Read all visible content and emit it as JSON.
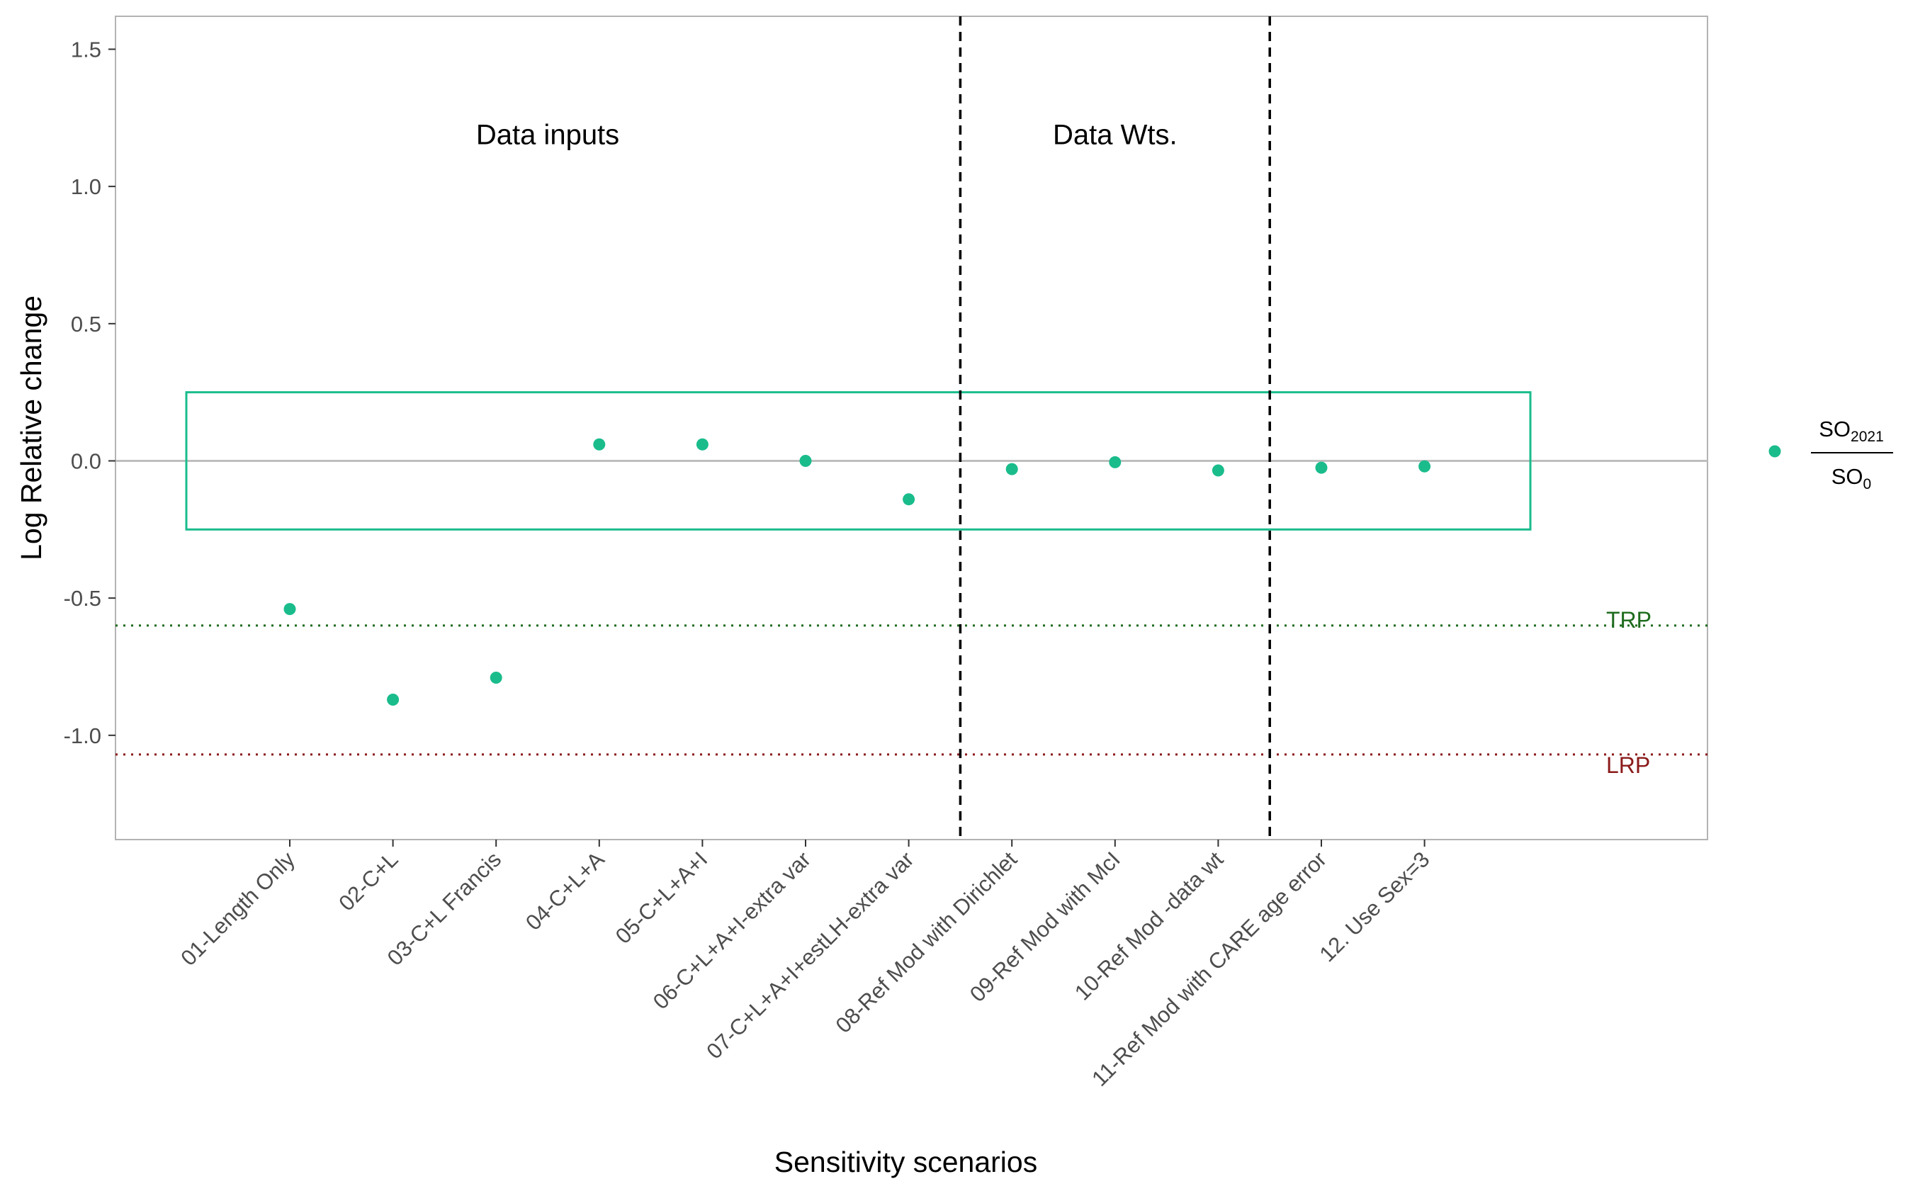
{
  "chart_data": {
    "type": "scatter",
    "xlabel": "Sensitivity scenarios",
    "ylabel": "Log Relative change",
    "ylim": [
      -1.38,
      1.62
    ],
    "yticks": [
      1.5,
      1.0,
      0.5,
      0.0,
      -0.5,
      -1.0
    ],
    "ytick_labels": [
      "1.5",
      "1.0",
      "0.5",
      "0.0",
      "-0.5",
      "-1.0"
    ],
    "grid": false,
    "categories": [
      "01-Length Only",
      "02-C+L",
      "03-C+L Francis",
      "04-C+L+A",
      "05-C+L+A+I",
      "06-C+L+A+I-extra var",
      "07-C+L+A+I+estLH-extra var",
      "08-Ref Mod with Dirichlet",
      "09-Ref Mod with McI",
      "10-Ref Mod -data wt",
      "11-Ref Mod with CARE age error",
      "12. Use Sex=3"
    ],
    "series": [
      {
        "values": [
          -0.54,
          -0.87,
          -0.79,
          0.06,
          0.06,
          0.0,
          -0.14,
          -0.03,
          -0.005,
          -0.035,
          -0.025,
          -0.02
        ],
        "color": "#1ABC8C"
      }
    ],
    "legend": {
      "position": "right",
      "numerator": "SO",
      "numerator_sub": "2021",
      "denominator": "SO",
      "denominator_sub": "0"
    },
    "reference_lines": [
      {
        "label": "TRP",
        "y": -0.6,
        "color": "#1E6B1E",
        "style": "dotted"
      },
      {
        "label": "LRP",
        "y": -1.07,
        "color": "#8B1A1A",
        "style": "dotted"
      }
    ],
    "zero_line": {
      "y": 0.0,
      "color": "#BEBEBE"
    },
    "band": {
      "y_low": -0.25,
      "y_high": 0.25,
      "color": "#1ABC8C"
    },
    "dividers": [
      {
        "after_category_index": 6
      },
      {
        "after_category_index": 9
      }
    ],
    "region_labels": [
      {
        "text": "Data inputs",
        "y": 1.19
      },
      {
        "text": "Data Wts.",
        "y": 1.19
      }
    ],
    "point_color": "#1ABC8C"
  }
}
